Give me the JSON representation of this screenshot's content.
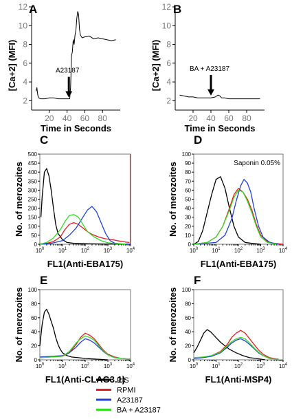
{
  "chart_data": [
    {
      "id": "A",
      "type": "line",
      "label": "A",
      "xlabel": "Time in Seconds",
      "ylabel": "[Ca+2] (MFI)",
      "xlim": [
        0,
        100
      ],
      "ylim": [
        1,
        12
      ],
      "xticks": [
        20,
        40,
        60,
        80
      ],
      "yticks": [
        2,
        4,
        6,
        8,
        10,
        12
      ],
      "annotation": "A23187",
      "arrow_x": 42,
      "series": [
        {
          "color": "#000000",
          "x": [
            5,
            6,
            7,
            8,
            10,
            15,
            20,
            25,
            30,
            35,
            40,
            42,
            43,
            44,
            45,
            46,
            47,
            48,
            49,
            50,
            51,
            52,
            53,
            54,
            55,
            57,
            60,
            65,
            70,
            75,
            80,
            85,
            90,
            95
          ],
          "y": [
            3.0,
            3.4,
            2.6,
            2.3,
            2.2,
            2.2,
            2.3,
            2.3,
            2.2,
            2.2,
            2.2,
            2.2,
            2.2,
            3.5,
            6.8,
            7.2,
            8.5,
            8.0,
            9.0,
            9.5,
            10.8,
            11.5,
            11.2,
            9.6,
            9.0,
            8.7,
            8.8,
            8.9,
            8.6,
            8.7,
            8.6,
            8.5,
            8.4,
            8.5
          ]
        }
      ]
    },
    {
      "id": "B",
      "type": "line",
      "label": "B",
      "xlabel": "Time in Seconds",
      "ylabel": "[Ca+2] (MFI)",
      "xlim": [
        0,
        100
      ],
      "ylim": [
        1,
        12
      ],
      "xticks": [
        20,
        40,
        60,
        80
      ],
      "yticks": [
        2,
        4,
        6,
        8,
        10,
        12
      ],
      "annotation": "BA + A23187",
      "arrow_x": 40,
      "series": [
        {
          "color": "#000000",
          "x": [
            5,
            10,
            15,
            20,
            25,
            30,
            35,
            40,
            45,
            48,
            50,
            52,
            55,
            60,
            65,
            70,
            75,
            80,
            85,
            90,
            95
          ],
          "y": [
            2.6,
            2.5,
            2.4,
            2.4,
            2.3,
            2.3,
            2.3,
            2.3,
            2.4,
            2.6,
            2.5,
            2.3,
            2.3,
            2.2,
            2.2,
            2.2,
            2.2,
            2.2,
            2.2,
            2.2,
            2.2
          ]
        }
      ]
    },
    {
      "id": "C",
      "type": "line",
      "label": "C",
      "xlabel": "FL1(Anti-EBA175)",
      "ylabel": "No. of  merozoites",
      "xlim": [
        0,
        4
      ],
      "ylim": [
        0,
        500
      ],
      "yticks": [
        0,
        50,
        100,
        150,
        200,
        250,
        300,
        350,
        400,
        450,
        500
      ],
      "xticks": [
        0,
        1,
        2,
        3,
        4
      ],
      "annotation": "",
      "series": [
        {
          "name": "PIS",
          "color": "#000000",
          "x": [
            0.05,
            0.1,
            0.2,
            0.3,
            0.4,
            0.5,
            0.6,
            0.7,
            0.8,
            1.0,
            1.2,
            1.5,
            2,
            2.5,
            3,
            3.5,
            4
          ],
          "y": [
            150,
            260,
            400,
            420,
            380,
            300,
            200,
            110,
            60,
            25,
            10,
            5,
            3,
            2,
            1,
            1,
            0
          ]
        },
        {
          "name": "RPMI",
          "color": "#e41a1c",
          "x": [
            0,
            0.3,
            0.6,
            0.9,
            1.1,
            1.3,
            1.5,
            1.7,
            1.9,
            2.1,
            2.3,
            2.6,
            2.9,
            3.2,
            3.5,
            3.8,
            3.95
          ],
          "y": [
            2,
            5,
            15,
            40,
            80,
            110,
            120,
            110,
            90,
            70,
            55,
            40,
            30,
            25,
            18,
            12,
            10
          ]
        },
        {
          "name": "A23187",
          "color": "#1f3fd6",
          "x": [
            0,
            0.5,
            1,
            1.3,
            1.6,
            1.9,
            2.1,
            2.3,
            2.5,
            2.7,
            2.9,
            3.1,
            3.3,
            3.6,
            4
          ],
          "y": [
            0,
            5,
            20,
            50,
            90,
            150,
            190,
            210,
            180,
            120,
            60,
            20,
            6,
            2,
            0
          ]
        },
        {
          "name": "BA + A23187",
          "color": "#33dd22",
          "x": [
            0,
            0.3,
            0.6,
            0.9,
            1.1,
            1.3,
            1.5,
            1.7,
            1.9,
            2.1,
            2.4,
            2.7,
            3,
            3.4,
            3.8
          ],
          "y": [
            0,
            10,
            35,
            80,
            125,
            160,
            165,
            150,
            110,
            70,
            40,
            20,
            8,
            3,
            1
          ]
        }
      ]
    },
    {
      "id": "D",
      "type": "line",
      "label": "D",
      "xlabel": "FL1(Anti-EBA175)",
      "ylabel": "No. of  merozoites",
      "xlim": [
        0,
        4
      ],
      "ylim": [
        0,
        100
      ],
      "yticks": [
        0,
        10,
        20,
        30,
        40,
        50,
        60,
        70,
        80,
        90,
        100
      ],
      "xticks": [
        0,
        1,
        2,
        3,
        4
      ],
      "annotation": "Saponin 0.05%",
      "series": [
        {
          "name": "PIS",
          "color": "#000000",
          "x": [
            0,
            0.2,
            0.4,
            0.6,
            0.8,
            1.0,
            1.2,
            1.4,
            1.6,
            1.8,
            2.0,
            2.3,
            2.6,
            3
          ],
          "y": [
            0,
            3,
            15,
            35,
            55,
            72,
            75,
            62,
            40,
            20,
            8,
            2,
            1,
            0
          ]
        },
        {
          "name": "RPMI",
          "color": "#e41a1c",
          "x": [
            0,
            0.6,
            1,
            1.3,
            1.6,
            1.8,
            2.0,
            2.2,
            2.4,
            2.6,
            2.8,
            3.0,
            3.3,
            3.6,
            4
          ],
          "y": [
            0,
            2,
            8,
            20,
            40,
            55,
            62,
            58,
            50,
            38,
            22,
            10,
            3,
            1,
            0
          ]
        },
        {
          "name": "A23187",
          "color": "#1f3fd6",
          "x": [
            0,
            1,
            1.4,
            1.7,
            1.9,
            2.1,
            2.25,
            2.4,
            2.55,
            2.7,
            2.9,
            3.1,
            3.4,
            3.8
          ],
          "y": [
            0,
            2,
            10,
            28,
            48,
            65,
            72,
            68,
            58,
            40,
            20,
            8,
            2,
            0
          ]
        },
        {
          "name": "BA + A23187",
          "color": "#33dd22",
          "x": [
            0,
            0.6,
            1,
            1.3,
            1.6,
            1.8,
            2.0,
            2.2,
            2.4,
            2.6,
            2.8,
            3.0,
            3.3,
            3.7
          ],
          "y": [
            0,
            2,
            8,
            20,
            38,
            52,
            60,
            58,
            48,
            35,
            20,
            8,
            2,
            0
          ]
        }
      ]
    },
    {
      "id": "E",
      "type": "line",
      "label": "E",
      "xlabel": "FL1(Anti-CLAG3.1)",
      "ylabel": "No. of  merozoites",
      "xlim": [
        0,
        4
      ],
      "ylim": [
        0,
        100
      ],
      "yticks": [
        0,
        20,
        40,
        60,
        80,
        100
      ],
      "xticks": [
        0,
        1,
        2,
        3,
        4
      ],
      "annotation": "",
      "series": [
        {
          "name": "PIS",
          "color": "#000000",
          "x": [
            0,
            0.1,
            0.2,
            0.3,
            0.4,
            0.5,
            0.6,
            0.7,
            0.8,
            0.9,
            1.0,
            1.2,
            1.4,
            1.7,
            2,
            2.5,
            3
          ],
          "y": [
            20,
            50,
            68,
            72,
            65,
            55,
            45,
            32,
            22,
            15,
            10,
            6,
            4,
            3,
            2,
            1,
            0
          ]
        },
        {
          "name": "RPMI",
          "color": "#e41a1c",
          "x": [
            0,
            0.5,
            1,
            1.3,
            1.6,
            1.8,
            2.0,
            2.2,
            2.4,
            2.6,
            2.8,
            3.0,
            3.3,
            3.6,
            4
          ],
          "y": [
            3,
            4,
            5,
            10,
            22,
            32,
            38,
            35,
            30,
            22,
            14,
            8,
            4,
            2,
            1
          ]
        },
        {
          "name": "A23187",
          "color": "#1f3fd6",
          "x": [
            0,
            0.5,
            1,
            1.3,
            1.6,
            1.8,
            2.0,
            2.2,
            2.4,
            2.6,
            2.8,
            3.0,
            3.3,
            3.6,
            4
          ],
          "y": [
            4,
            5,
            6,
            10,
            18,
            25,
            30,
            28,
            24,
            18,
            12,
            7,
            3,
            2,
            1
          ]
        },
        {
          "name": "BA + A23187",
          "color": "#33dd22",
          "x": [
            0,
            0.5,
            1,
            1.3,
            1.6,
            1.8,
            2.0,
            2.2,
            2.4,
            2.6,
            2.8,
            3.0,
            3.3,
            3.6,
            4
          ],
          "y": [
            3,
            4,
            5,
            12,
            24,
            30,
            34,
            32,
            28,
            20,
            13,
            7,
            3,
            2,
            1
          ]
        }
      ]
    },
    {
      "id": "F",
      "type": "line",
      "label": "F",
      "xlabel": "FL1(Anti-MSP4)",
      "ylabel": "No. of  merozoites",
      "xlim": [
        0,
        4
      ],
      "ylim": [
        0,
        100
      ],
      "yticks": [
        0,
        20,
        40,
        60,
        80,
        100
      ],
      "xticks": [
        0,
        1,
        2,
        3,
        4
      ],
      "annotation": "",
      "series": [
        {
          "name": "PIS",
          "color": "#000000",
          "x": [
            0,
            0.15,
            0.3,
            0.45,
            0.6,
            0.75,
            0.9,
            1.05,
            1.2,
            1.4,
            1.6,
            1.9,
            2.2,
            2.5,
            2.8,
            3.2
          ],
          "y": [
            10,
            18,
            28,
            38,
            43,
            40,
            35,
            30,
            25,
            20,
            15,
            10,
            6,
            3,
            2,
            0
          ]
        },
        {
          "name": "RPMI",
          "color": "#e41a1c",
          "x": [
            0,
            0.4,
            0.8,
            1.2,
            1.5,
            1.7,
            1.9,
            2.1,
            2.3,
            2.5,
            2.7,
            2.9,
            3.1,
            3.4,
            3.8
          ],
          "y": [
            2,
            3,
            6,
            12,
            22,
            32,
            38,
            42,
            38,
            30,
            22,
            14,
            8,
            3,
            1
          ]
        },
        {
          "name": "A23187",
          "color": "#1f3fd6",
          "x": [
            0,
            0.4,
            0.8,
            1.2,
            1.5,
            1.7,
            1.9,
            2.1,
            2.3,
            2.5,
            2.7,
            2.9,
            3.1,
            3.4,
            3.8
          ],
          "y": [
            2,
            3,
            5,
            10,
            18,
            24,
            28,
            30,
            27,
            22,
            16,
            10,
            6,
            2,
            1
          ]
        },
        {
          "name": "BA + A23187",
          "color": "#33dd22",
          "x": [
            0,
            0.4,
            0.8,
            1.2,
            1.5,
            1.7,
            1.9,
            2.1,
            2.3,
            2.5,
            2.7,
            2.9,
            3.1,
            3.4,
            3.8
          ],
          "y": [
            3,
            4,
            6,
            11,
            20,
            26,
            30,
            32,
            30,
            24,
            17,
            11,
            6,
            2,
            1
          ]
        }
      ]
    }
  ],
  "spike_C": {
    "x": 0.02,
    "y": 500
  },
  "legend": [
    {
      "label": "PIS",
      "color": "#000000"
    },
    {
      "label": "RPMI",
      "color": "#e41a1c"
    },
    {
      "label": "A23187",
      "color": "#1f3fd6"
    },
    {
      "label": "BA + A23187",
      "color": "#33dd22"
    }
  ]
}
